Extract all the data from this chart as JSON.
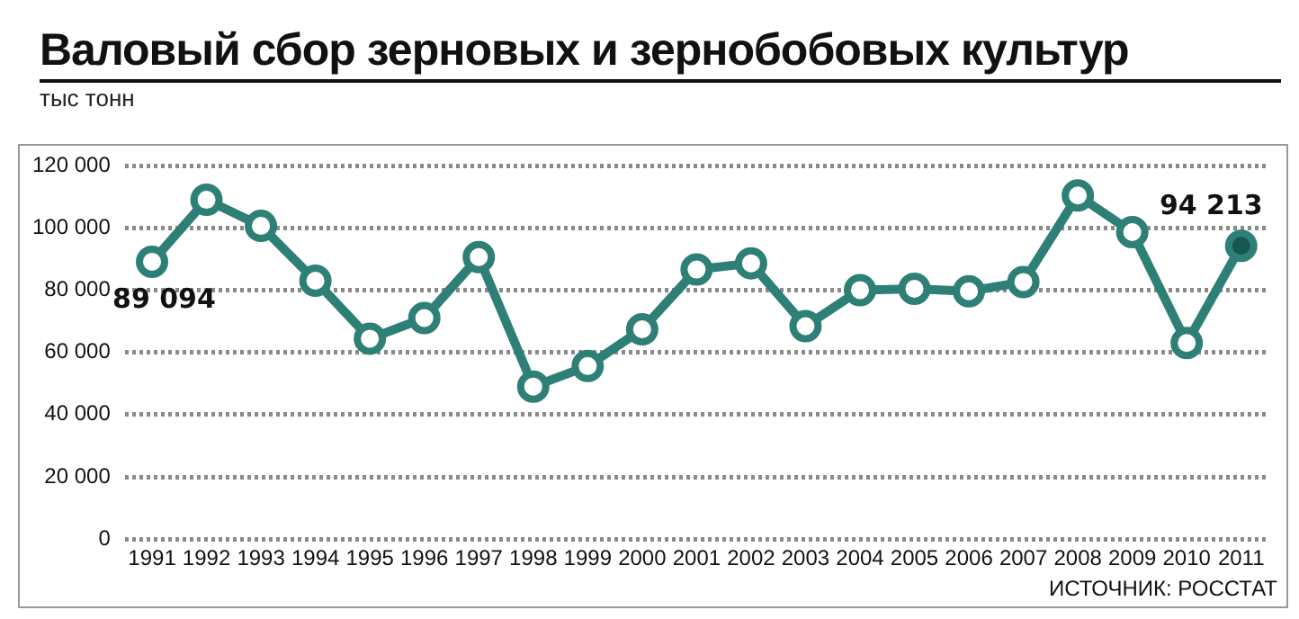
{
  "chart_data": {
    "type": "line",
    "title": "Валовый сбор зерновых и зернобобовых культур",
    "subtitle": "тыс тонн",
    "categories": [
      "1991",
      "1992",
      "1993",
      "1994",
      "1995",
      "1996",
      "1997",
      "1998",
      "1999",
      "2000",
      "2001",
      "2002",
      "2003",
      "2004",
      "2005",
      "2006",
      "2007",
      "2008",
      "2009",
      "2010",
      "2011"
    ],
    "series": [
      {
        "color": "#2e8077",
        "values": [
          89094,
          109000,
          100600,
          83000,
          64400,
          71000,
          90600,
          49000,
          55600,
          67400,
          86600,
          88600,
          68400,
          80000,
          80400,
          79600,
          82600,
          110400,
          98600,
          63000,
          94213
        ],
        "colors": [
          "#ffffff",
          "#ffffff",
          "#ffffff",
          "#ffffff",
          "#ffffff",
          "#ffffff",
          "#ffffff",
          "#ffffff",
          "#ffffff",
          "#ffffff",
          "#ffffff",
          "#ffffff",
          "#ffffff",
          "#ffffff",
          "#ffffff",
          "#ffffff",
          "#ffffff",
          "#ffffff",
          "#ffffff",
          "#ffffff",
          "#16574f"
        ],
        "value_labels": [
          "89 094",
          null,
          null,
          null,
          null,
          null,
          null,
          null,
          null,
          null,
          null,
          null,
          null,
          null,
          null,
          null,
          null,
          null,
          null,
          null,
          "94 213"
        ]
      }
    ],
    "ylim": [
      0,
      120000
    ],
    "yticks": [
      {
        "value": 0,
        "label": "0"
      },
      {
        "value": 20000,
        "label": "20 000"
      },
      {
        "value": 40000,
        "label": "40 000"
      },
      {
        "value": 60000,
        "label": "60 000"
      },
      {
        "value": 80000,
        "label": "80 000"
      },
      {
        "value": 100000,
        "label": "100 000"
      },
      {
        "value": 120000,
        "label": "120 000"
      }
    ],
    "grid": "y",
    "legend": false,
    "marker": "circle",
    "line_style": "solid",
    "annotations": [
      "ИСТОЧНИК: РОССТАТ"
    ]
  }
}
